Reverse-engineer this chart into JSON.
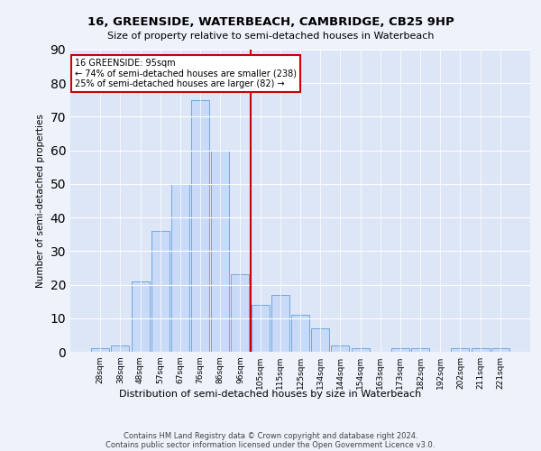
{
  "title1": "16, GREENSIDE, WATERBEACH, CAMBRIDGE, CB25 9HP",
  "title2": "Size of property relative to semi-detached houses in Waterbeach",
  "xlabel": "Distribution of semi-detached houses by size in Waterbeach",
  "ylabel": "Number of semi-detached properties",
  "categories": [
    "28sqm",
    "38sqm",
    "48sqm",
    "57sqm",
    "67sqm",
    "76sqm",
    "86sqm",
    "96sqm",
    "105sqm",
    "115sqm",
    "125sqm",
    "134sqm",
    "144sqm",
    "154sqm",
    "163sqm",
    "173sqm",
    "182sqm",
    "192sqm",
    "202sqm",
    "211sqm",
    "221sqm"
  ],
  "values": [
    1,
    2,
    21,
    36,
    50,
    75,
    60,
    23,
    14,
    17,
    11,
    7,
    2,
    1,
    0,
    1,
    1,
    0,
    1,
    1,
    1
  ],
  "bar_color": "#c9daf8",
  "bar_edge_color": "#6fa8dc",
  "vline_pos": 7.5,
  "vline_color": "#cc0000",
  "annotation_text": "16 GREENSIDE: 95sqm\n← 74% of semi-detached houses are smaller (238)\n25% of semi-detached houses are larger (82) →",
  "annotation_box_color": "#ffffff",
  "annotation_box_edge": "#cc0000",
  "ylim": [
    0,
    90
  ],
  "yticks": [
    0,
    10,
    20,
    30,
    40,
    50,
    60,
    70,
    80,
    90
  ],
  "footer1": "Contains HM Land Registry data © Crown copyright and database right 2024.",
  "footer2": "Contains public sector information licensed under the Open Government Licence v3.0.",
  "bg_color": "#eef2fb",
  "plot_bg_color": "#dce6f7"
}
